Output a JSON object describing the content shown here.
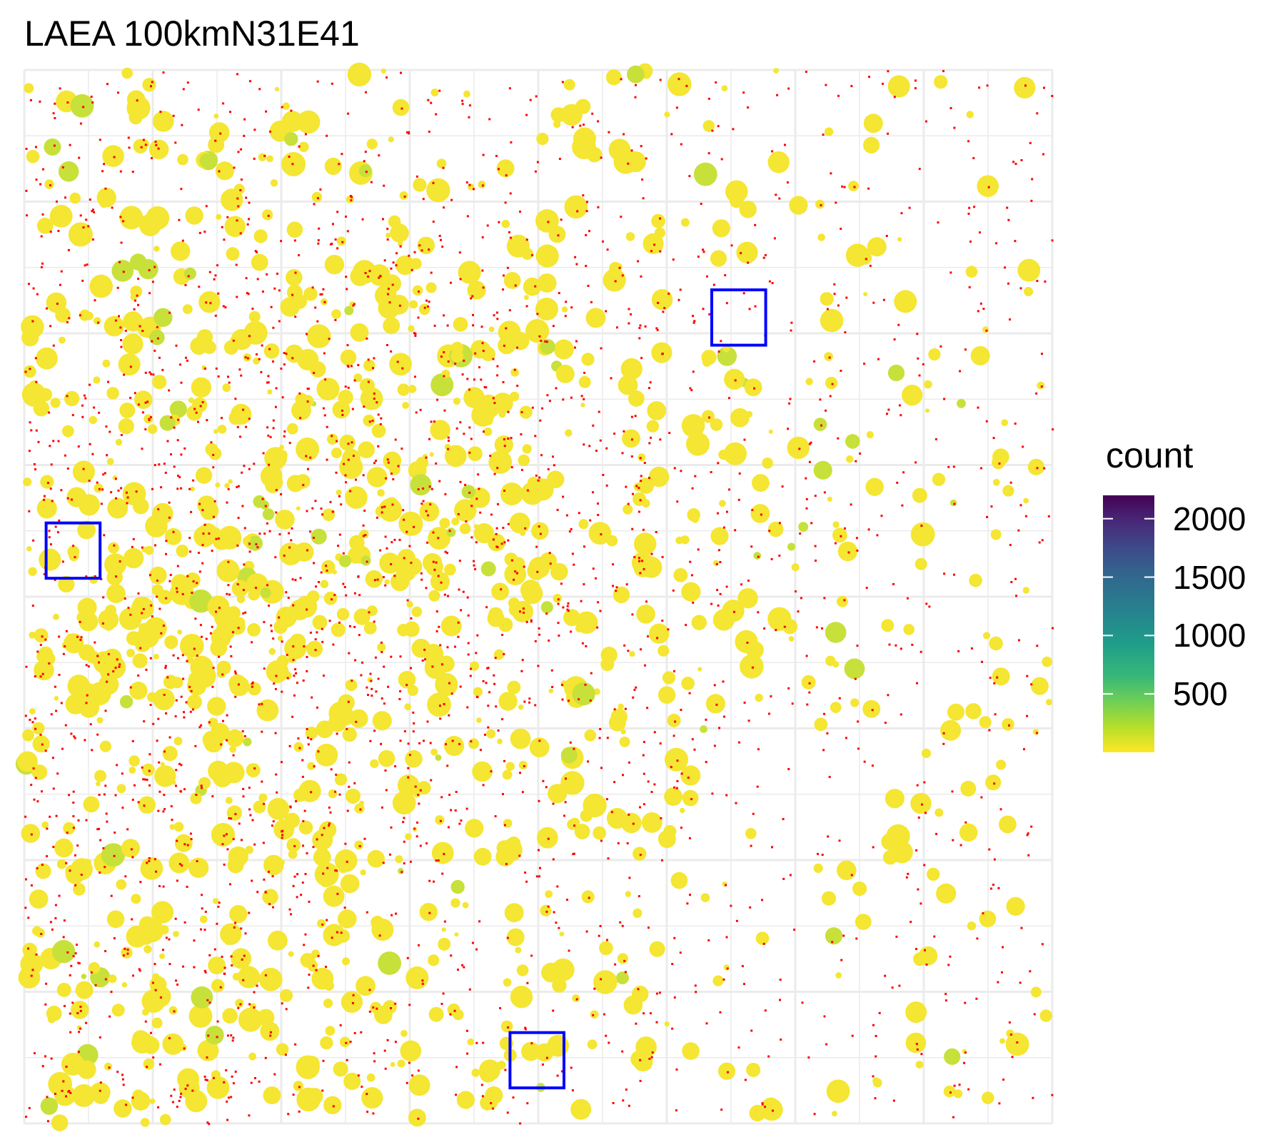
{
  "chart_data": {
    "type": "heatmap",
    "title": "LAEA 100kmN31E41",
    "xlabel": "",
    "ylabel": "",
    "grid": true,
    "grid_cells": {
      "columns": 8,
      "rows": 8
    },
    "legend": {
      "title": "count",
      "position": "right",
      "colormap": "viridis (reversed)",
      "range": [
        0,
        2200
      ],
      "ticks": [
        500,
        1000,
        1500,
        2000
      ],
      "tick_labels": [
        "500",
        "1000",
        "1500",
        "2000"
      ]
    },
    "low_count_color": "#ff0000",
    "highlight_color": "#0000ff",
    "highlight_boxes": [
      {
        "name": "box-upper-right",
        "cell_col": 5.35,
        "cell_row": 1.67,
        "size_cells": 0.42
      },
      {
        "name": "box-left",
        "cell_col": 0.17,
        "cell_row": 3.44,
        "size_cells": 0.42
      },
      {
        "name": "box-bottom",
        "cell_col": 3.78,
        "cell_row": 7.31,
        "size_cells": 0.42
      }
    ]
  }
}
